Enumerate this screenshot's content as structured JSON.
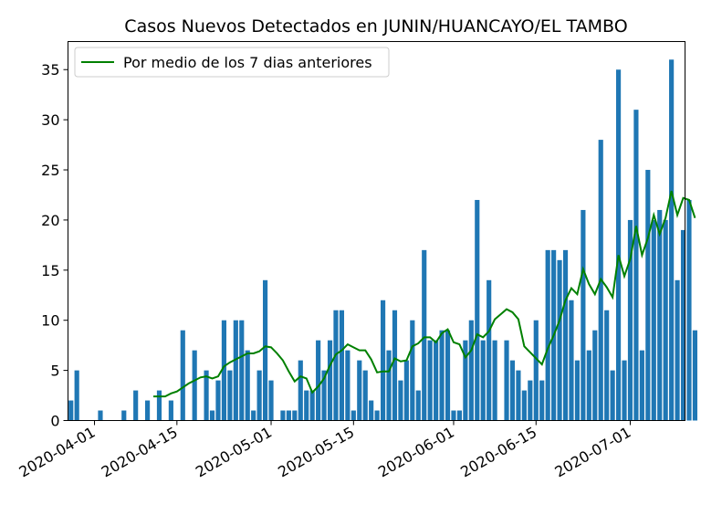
{
  "chart_data": {
    "type": "bar",
    "title": "Casos Nuevos Detectados en JUNIN/HUANCAYO/EL TAMBO",
    "xlabel": "",
    "ylabel": "",
    "x_start": "2020-03-28",
    "y_ticks": [
      0,
      5,
      10,
      15,
      20,
      25,
      30,
      35
    ],
    "ylim": [
      0,
      37.8
    ],
    "x_tick_labels": [
      "2020-04-01",
      "2020-04-15",
      "2020-05-01",
      "2020-05-15",
      "2020-06-01",
      "2020-06-15",
      "2020-07-01"
    ],
    "legend": {
      "position": "top-left",
      "label": "Por medio de los 7 dias anteriores"
    },
    "colors": {
      "bars": "#1f77b4",
      "line": "#008000"
    },
    "bars": [
      2,
      5,
      0,
      0,
      0,
      1,
      0,
      0,
      0,
      1,
      0,
      3,
      0,
      2,
      0,
      3,
      0,
      2,
      0,
      9,
      0,
      7,
      0,
      5,
      1,
      4,
      10,
      5,
      10,
      10,
      7,
      1,
      5,
      14,
      4,
      0,
      1,
      1,
      1,
      6,
      3,
      3,
      8,
      5,
      8,
      11,
      11,
      7,
      1,
      6,
      5,
      2,
      1,
      12,
      7,
      11,
      4,
      6,
      10,
      3,
      17,
      8,
      8,
      9,
      9,
      1,
      1,
      8,
      10,
      22,
      8,
      14,
      8,
      0,
      8,
      6,
      5,
      3,
      4,
      10,
      4,
      17,
      17,
      16,
      17,
      12,
      6,
      21,
      7,
      9,
      28,
      11,
      5,
      35,
      6,
      20,
      31,
      7,
      25,
      20,
      21,
      20,
      36,
      14,
      19,
      22,
      9
    ],
    "line": [
      null,
      null,
      null,
      null,
      null,
      null,
      null,
      null,
      null,
      null,
      null,
      null,
      null,
      null,
      2.4,
      2.4,
      2.4,
      2.7,
      2.9,
      3.3,
      3.7,
      4.0,
      4.3,
      4.4,
      4.2,
      4.4,
      5.4,
      5.8,
      6.1,
      6.4,
      6.7,
      6.7,
      6.9,
      7.4,
      7.3,
      6.7,
      6.0,
      4.9,
      3.9,
      4.4,
      4.2,
      2.8,
      3.4,
      4.2,
      5.5,
      6.6,
      7.0,
      7.6,
      7.3,
      7.0,
      7.0,
      6.1,
      4.8,
      4.9,
      4.9,
      6.2,
      5.9,
      6.0,
      7.4,
      7.7,
      8.3,
      8.3,
      7.8,
      8.7,
      9.1,
      7.8,
      7.6,
      6.3,
      7.0,
      8.6,
      8.3,
      8.9,
      10.1,
      10.6,
      11.1,
      10.8,
      10.1,
      7.4,
      6.8,
      6.2,
      5.6,
      7.2,
      8.5,
      10.0,
      12.0,
      13.2,
      12.6,
      15.1,
      13.6,
      12.6,
      14.1,
      13.3,
      12.3,
      16.5,
      14.4,
      16.1,
      19.4,
      16.5,
      18.2,
      20.5,
      18.6,
      20.2,
      22.9,
      20.5,
      22.2,
      22.0,
      20.2
    ]
  }
}
